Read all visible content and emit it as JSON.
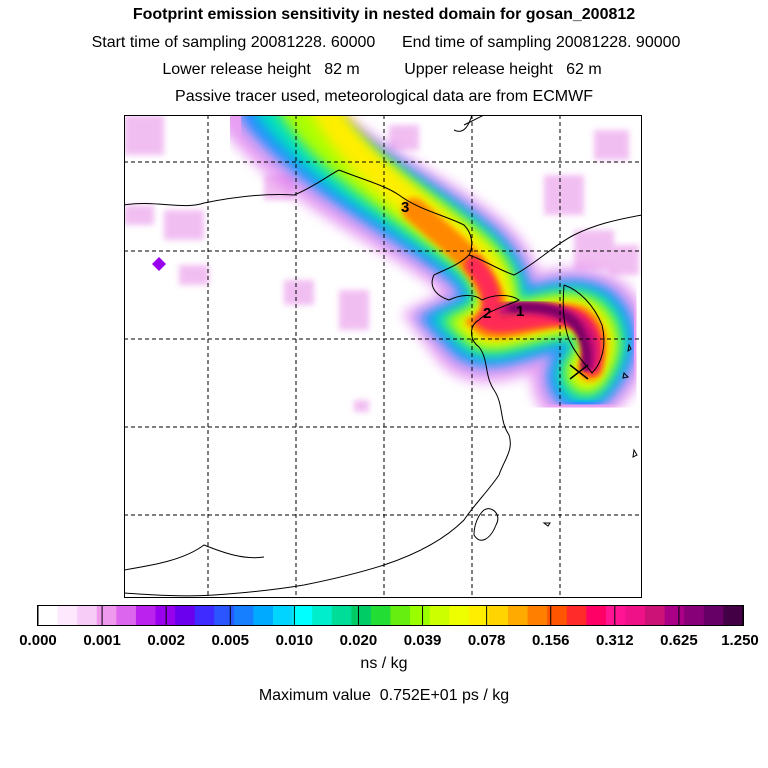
{
  "header": {
    "title": "Footprint emission sensitivity in nested domain for gosan_200812",
    "start_sampling": "Start time of sampling 20081228. 60000",
    "end_sampling": "End time of sampling 20081228. 90000",
    "lower_release": "Lower release height   82 m",
    "upper_release": "Upper release height   62 m",
    "tracer_note": "Passive tracer used, meteorological data are from ECMWF"
  },
  "map": {
    "labels": [
      "1",
      "2",
      "3"
    ],
    "receptor_marker": "x-marker"
  },
  "colorbar": {
    "colors": [
      "#ffffff",
      "#fde8fd",
      "#f7ccf7",
      "#ee99ee",
      "#dd66ee",
      "#bb22ee",
      "#9900ee",
      "#6a00ee",
      "#3f2bff",
      "#2a55ff",
      "#157fff",
      "#00aaff",
      "#00d4ff",
      "#00ffff",
      "#00eecc",
      "#00dd99",
      "#00cc66",
      "#22dd33",
      "#66ee11",
      "#99ff00",
      "#ccff00",
      "#eeff00",
      "#ffee00",
      "#ffd400",
      "#ffaa00",
      "#ff7f00",
      "#ff5500",
      "#ff2a2a",
      "#ff0066",
      "#ff1493",
      "#ee1188",
      "#cc1177",
      "#aa0088",
      "#880077",
      "#660066",
      "#440044"
    ],
    "tick_labels": [
      "0.000",
      "0.001",
      "0.002",
      "0.005",
      "0.010",
      "0.020",
      "0.039",
      "0.078",
      "0.156",
      "0.312",
      "0.625",
      "1.250"
    ],
    "unit": "ns / kg"
  },
  "max_value": "Maximum value  0.752E+01 ps / kg"
}
